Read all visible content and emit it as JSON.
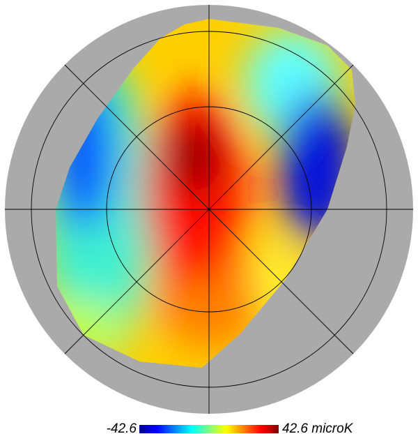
{
  "colorbar": {
    "min_label": "-42.6",
    "max_label": "42.6 microK"
  }
}
